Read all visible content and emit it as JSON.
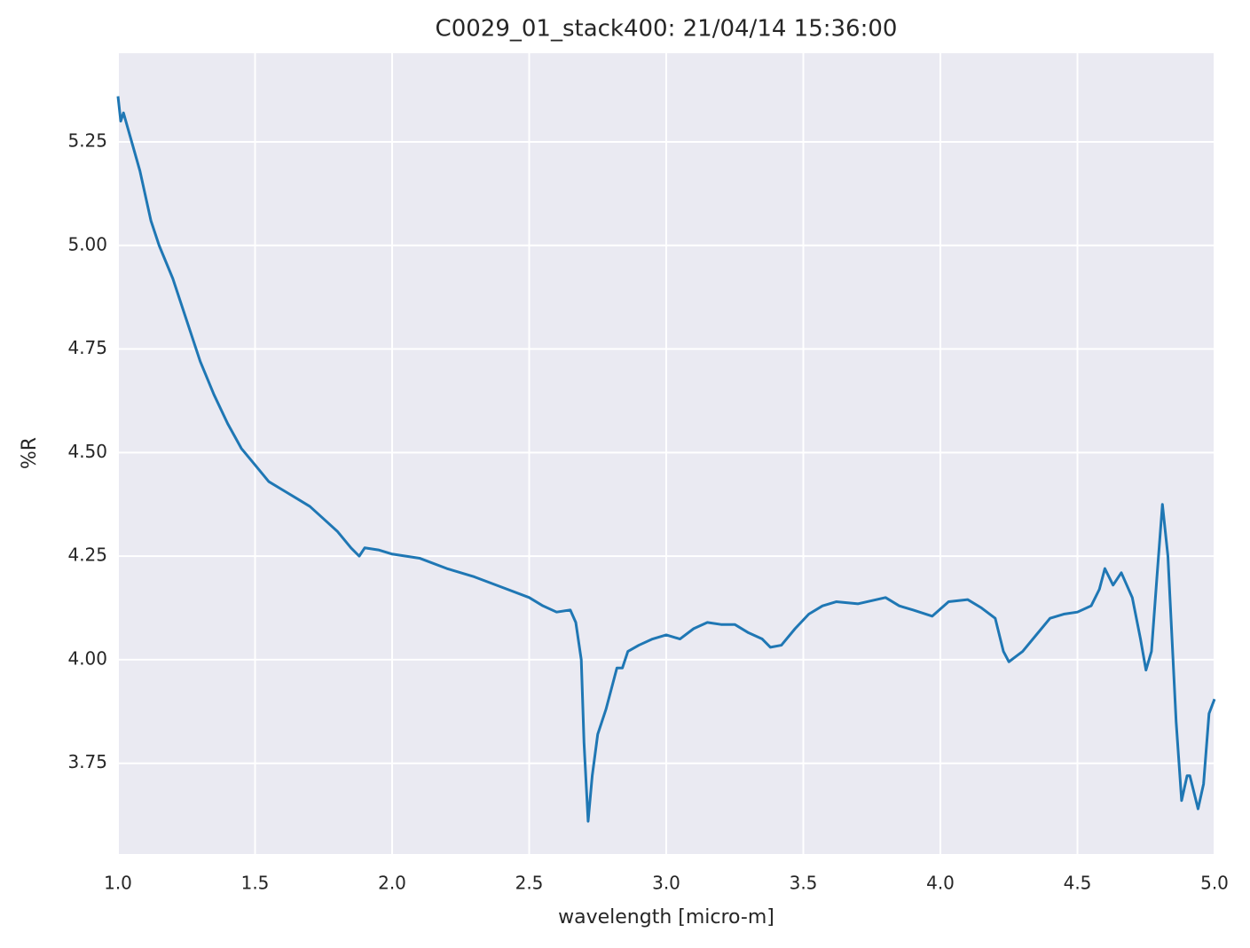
{
  "chart_data": {
    "type": "line",
    "title": "C0029_01_stack400:  21/04/14 15:36:00",
    "x_label": "wavelength [micro-m]",
    "y_label": "%R",
    "xlim": [
      1.0,
      5.0
    ],
    "ylim": [
      3.531,
      5.464
    ],
    "xticks": [
      {
        "value": 1,
        "label": "1.0"
      },
      {
        "value": 1.5,
        "label": "1.5"
      },
      {
        "value": 2,
        "label": "2.0"
      },
      {
        "value": 2.5,
        "label": "2.5"
      },
      {
        "value": 3,
        "label": "3.0"
      },
      {
        "value": 3.5,
        "label": "3.5"
      },
      {
        "value": 4,
        "label": "4.0"
      },
      {
        "value": 4.5,
        "label": "4.5"
      },
      {
        "value": 5,
        "label": "5.0"
      }
    ],
    "yticks": [
      3.75,
      {
        "value": 4,
        "label": "4.00"
      },
      4.25,
      {
        "value": 4.5,
        "label": "4.50"
      },
      4.75,
      {
        "value": 5,
        "label": "5.00"
      },
      5.25
    ],
    "grid": true,
    "background": "#eaeaf2",
    "x": [
      1.0,
      1.01,
      1.02,
      1.05,
      1.08,
      1.1,
      1.12,
      1.15,
      1.2,
      1.25,
      1.3,
      1.35,
      1.4,
      1.45,
      1.5,
      1.55,
      1.6,
      1.65,
      1.7,
      1.75,
      1.8,
      1.85,
      1.88,
      1.9,
      1.95,
      2.0,
      2.1,
      2.2,
      2.3,
      2.4,
      2.5,
      2.55,
      2.6,
      2.65,
      2.67,
      2.69,
      2.7,
      2.715,
      2.73,
      2.75,
      2.78,
      2.8,
      2.82,
      2.84,
      2.86,
      2.9,
      2.95,
      3.0,
      3.05,
      3.1,
      3.15,
      3.2,
      3.25,
      3.3,
      3.35,
      3.38,
      3.42,
      3.47,
      3.52,
      3.57,
      3.62,
      3.7,
      3.8,
      3.85,
      3.9,
      3.97,
      4.03,
      4.1,
      4.15,
      4.2,
      4.23,
      4.25,
      4.3,
      4.35,
      4.4,
      4.45,
      4.5,
      4.55,
      4.58,
      4.6,
      4.63,
      4.66,
      4.7,
      4.73,
      4.75,
      4.77,
      4.79,
      4.81,
      4.83,
      4.86,
      4.88,
      4.9,
      4.91,
      4.94,
      4.96,
      4.98,
      5.0
    ],
    "series": [
      {
        "name": "%R",
        "color": "#1f77b4",
        "values": [
          5.36,
          5.3,
          5.32,
          5.25,
          5.18,
          5.12,
          5.06,
          5.0,
          4.92,
          4.82,
          4.72,
          4.64,
          4.57,
          4.51,
          4.47,
          4.43,
          4.41,
          4.39,
          4.37,
          4.34,
          4.31,
          4.27,
          4.25,
          4.27,
          4.265,
          4.255,
          4.245,
          4.22,
          4.2,
          4.175,
          4.15,
          4.13,
          4.115,
          4.12,
          4.09,
          4.0,
          3.8,
          3.61,
          3.72,
          3.82,
          3.88,
          3.93,
          3.98,
          3.98,
          4.02,
          4.035,
          4.05,
          4.06,
          4.05,
          4.075,
          4.09,
          4.085,
          4.085,
          4.065,
          4.05,
          4.03,
          4.035,
          4.075,
          4.11,
          4.13,
          4.14,
          4.135,
          4.15,
          4.13,
          4.12,
          4.105,
          4.14,
          4.145,
          4.125,
          4.1,
          4.02,
          3.995,
          4.02,
          4.06,
          4.1,
          4.11,
          4.115,
          4.13,
          4.17,
          4.22,
          4.18,
          4.21,
          4.15,
          4.05,
          3.975,
          4.02,
          4.2,
          4.375,
          4.25,
          3.85,
          3.66,
          3.72,
          3.72,
          3.64,
          3.7,
          3.87,
          3.905
        ]
      }
    ]
  }
}
